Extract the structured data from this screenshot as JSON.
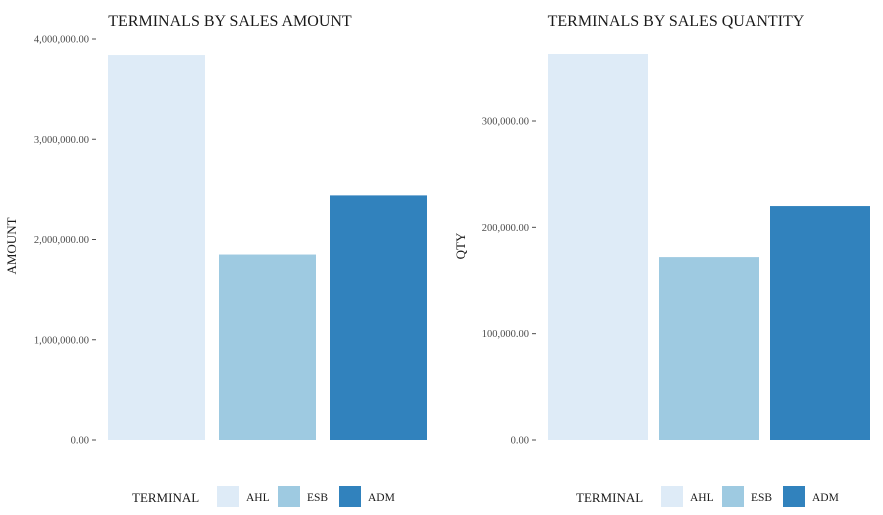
{
  "chart_data": [
    {
      "type": "bar",
      "title": "TERMINALS BY SALES AMOUNT",
      "xlabel": "",
      "ylabel": "AMOUNT",
      "categories": [
        "AHL",
        "ESB",
        "ADM"
      ],
      "values": [
        3840000,
        1850000,
        2440000
      ],
      "colors": [
        "#deebf7",
        "#9ecae1",
        "#3182bd"
      ],
      "ylim": [
        0,
        4000000
      ],
      "yticks": [
        0,
        1000000,
        2000000,
        3000000,
        4000000
      ],
      "ytick_labels": [
        "0.00",
        "1,000,000.00",
        "2,000,000.00",
        "3,000,000.00",
        "4,000,000.00"
      ],
      "legend": {
        "title": "TERMINAL",
        "entries": [
          "AHL",
          "ESB",
          "ADM"
        ],
        "position": "bottom"
      },
      "grid": false
    },
    {
      "type": "bar",
      "title": "TERMINALS BY SALES QUANTITY",
      "xlabel": "",
      "ylabel": "QTY",
      "categories": [
        "AHL",
        "ESB",
        "ADM"
      ],
      "values": [
        363000,
        172000,
        220000
      ],
      "colors": [
        "#deebf7",
        "#9ecae1",
        "#3182bd"
      ],
      "ylim": [
        0,
        363000
      ],
      "yticks": [
        0,
        100000,
        200000,
        300000
      ],
      "ytick_labels": [
        "0.00",
        "100,000.00",
        "200,000.00",
        "300,000.00"
      ],
      "legend": {
        "title": "TERMINAL",
        "entries": [
          "AHL",
          "ESB",
          "ADM"
        ],
        "position": "bottom"
      },
      "grid": false
    }
  ]
}
